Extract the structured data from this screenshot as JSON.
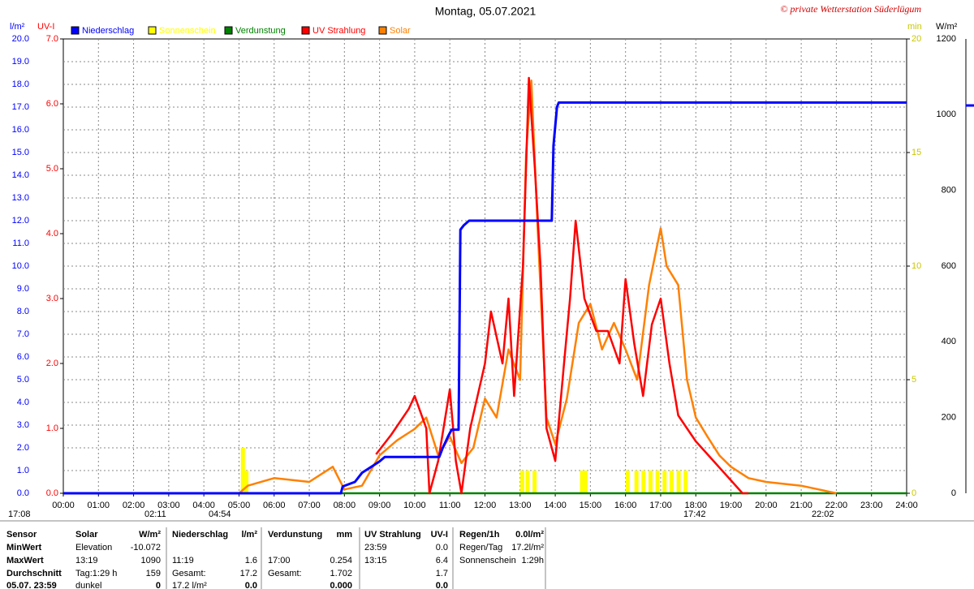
{
  "chart_data": {
    "type": "line",
    "title": "Montag, 05.07.2021",
    "copyright": "© private Wetterstation Süderlügum",
    "ylabel": "l/m²",
    "y2label": "UV-I",
    "y3label": "min",
    "y4label": "W/m²",
    "xlim": [
      0,
      24
    ],
    "xticks": [
      {
        "value": 0,
        "label": "00:00"
      },
      {
        "value": 1,
        "label": "01:00"
      },
      {
        "value": 2,
        "label": "02:00"
      },
      {
        "value": 3,
        "label": "03:00"
      },
      {
        "value": 4,
        "label": "04:00"
      },
      {
        "value": 5,
        "label": "05:00"
      },
      {
        "value": 6,
        "label": "06:00"
      },
      {
        "value": 7,
        "label": "07:00"
      },
      {
        "value": 8,
        "label": "08:00"
      },
      {
        "value": 9,
        "label": "09:00"
      },
      {
        "value": 10,
        "label": "10:00"
      },
      {
        "value": 11,
        "label": "11:00"
      },
      {
        "value": 12,
        "label": "12:00"
      },
      {
        "value": 13,
        "label": "13:00"
      },
      {
        "value": 14,
        "label": "14:00"
      },
      {
        "value": 15,
        "label": "15:00"
      },
      {
        "value": 16,
        "label": "16:00"
      },
      {
        "value": 17,
        "label": "17:00"
      },
      {
        "value": 18,
        "label": "18:00"
      },
      {
        "value": 19,
        "label": "19:00"
      },
      {
        "value": 20,
        "label": "20:00"
      },
      {
        "value": 21,
        "label": "21:00"
      },
      {
        "value": 22,
        "label": "22:00"
      },
      {
        "value": 23,
        "label": "23:00"
      },
      {
        "value": 24,
        "label": "24:00"
      }
    ],
    "ylim": [
      0,
      20
    ],
    "yticks": [
      {
        "value": 0,
        "label": "0.0"
      },
      {
        "value": 1,
        "label": "1.0"
      },
      {
        "value": 2,
        "label": "2.0"
      },
      {
        "value": 3,
        "label": "3.0"
      },
      {
        "value": 4,
        "label": "4.0"
      },
      {
        "value": 5,
        "label": "5.0"
      },
      {
        "value": 6,
        "label": "6.0"
      },
      {
        "value": 7,
        "label": "7.0"
      },
      {
        "value": 8,
        "label": "8.0"
      },
      {
        "value": 9,
        "label": "9.0"
      },
      {
        "value": 10,
        "label": "10.0"
      },
      {
        "value": 11,
        "label": "11.0"
      },
      {
        "value": 12,
        "label": "12.0"
      },
      {
        "value": 13,
        "label": "13.0"
      },
      {
        "value": 14,
        "label": "14.0"
      },
      {
        "value": 15,
        "label": "15.0"
      },
      {
        "value": 16,
        "label": "16.0"
      },
      {
        "value": 17,
        "label": "17.0"
      },
      {
        "value": 18,
        "label": "18.0"
      },
      {
        "value": 19,
        "label": "19.0"
      },
      {
        "value": 20,
        "label": "20.0"
      }
    ],
    "y2lim": [
      0,
      7
    ],
    "y2ticks": [
      {
        "value": 0,
        "label": "0.0"
      },
      {
        "value": 1,
        "label": "1.0"
      },
      {
        "value": 2,
        "label": "2.0"
      },
      {
        "value": 3,
        "label": "3.0"
      },
      {
        "value": 4,
        "label": "4.0"
      },
      {
        "value": 5,
        "label": "5.0"
      },
      {
        "value": 6,
        "label": "6.0"
      },
      {
        "value": 7,
        "label": "7.0"
      }
    ],
    "y3lim": [
      0,
      20
    ],
    "y3ticks": [
      0,
      5,
      10,
      15,
      20
    ],
    "y4lim": [
      0,
      1200
    ],
    "y4ticks": [
      0,
      200,
      400,
      600,
      800,
      1000,
      1200
    ],
    "grid": true,
    "series": [
      {
        "name": "Niederschlag",
        "color": "#0000ff",
        "axis": "y",
        "style": "line",
        "x": [
          0,
          7.9,
          7.95,
          8.3,
          8.5,
          8.8,
          9.0,
          9.15,
          10.7,
          10.8,
          10.95,
          11.05,
          11.25,
          11.3,
          11.4,
          11.55,
          13.9,
          13.95,
          14.05,
          14.1,
          24
        ],
        "values": [
          0,
          0,
          0.3,
          0.5,
          0.9,
          1.2,
          1.4,
          1.6,
          1.6,
          2.0,
          2.5,
          2.8,
          2.8,
          11.6,
          11.8,
          12.0,
          12.0,
          15.3,
          17.0,
          17.2,
          17.2
        ]
      },
      {
        "name": "Sonnenschein",
        "color": "#ffff00",
        "axis": "y3",
        "style": "bar",
        "x": [
          5.1,
          5.2,
          13.05,
          13.2,
          13.4,
          14.75,
          14.85,
          16.05,
          16.3,
          16.5,
          16.7,
          16.9,
          17.1,
          17.3,
          17.5,
          17.7
        ],
        "values": [
          2,
          1,
          1,
          1,
          1,
          1,
          1,
          1,
          1,
          1,
          1,
          1,
          1,
          1,
          1,
          1
        ]
      },
      {
        "name": "Verdunstung",
        "color": "#008000",
        "axis": "y",
        "style": "line",
        "x": [
          0,
          24
        ],
        "values": [
          0,
          0
        ]
      },
      {
        "name": "UV Strahlung",
        "color": "#ff0000",
        "axis": "y2",
        "style": "line",
        "x": [
          8.9,
          9.33,
          9.83,
          10.0,
          10.33,
          10.42,
          10.67,
          11.0,
          11.17,
          11.33,
          11.58,
          12.0,
          12.17,
          12.5,
          12.67,
          12.83,
          13.08,
          13.25,
          13.42,
          13.58,
          13.75,
          14.0,
          14.25,
          14.42,
          14.58,
          14.83,
          15.17,
          15.5,
          15.83,
          16.0,
          16.25,
          16.5,
          16.75,
          17.0,
          17.25,
          17.5,
          17.75,
          18.0,
          18.5,
          19.0,
          19.33,
          19.5
        ],
        "values": [
          0.6,
          0.9,
          1.3,
          1.5,
          1.0,
          0,
          0.5,
          1.6,
          0.5,
          0,
          1.0,
          2.0,
          2.8,
          2.0,
          3.0,
          1.5,
          3.5,
          6.4,
          5.0,
          3.5,
          1.0,
          0.5,
          2.0,
          3.0,
          4.2,
          3.0,
          2.5,
          2.5,
          2.0,
          3.3,
          2.3,
          1.5,
          2.6,
          3.0,
          2.0,
          1.2,
          1.0,
          0.8,
          0.5,
          0.2,
          0,
          0
        ]
      },
      {
        "name": "Solar",
        "color": "#ff8000",
        "axis": "y4",
        "style": "line",
        "x": [
          5.0,
          5.25,
          6.0,
          7.0,
          7.67,
          8.0,
          8.5,
          9.0,
          9.5,
          10.0,
          10.33,
          10.67,
          11.0,
          11.33,
          11.67,
          12.0,
          12.33,
          12.67,
          13.0,
          13.17,
          13.32,
          13.5,
          13.75,
          14.0,
          14.33,
          14.67,
          15.0,
          15.33,
          15.67,
          16.0,
          16.33,
          16.67,
          17.0,
          17.17,
          17.5,
          17.75,
          18.0,
          18.33,
          18.67,
          19.0,
          19.5,
          20.0,
          21.0,
          21.5,
          22.0
        ],
        "values": [
          0,
          20,
          40,
          30,
          70,
          10,
          20,
          100,
          140,
          170,
          200,
          100,
          150,
          80,
          120,
          250,
          200,
          380,
          300,
          900,
          1090,
          700,
          200,
          130,
          250,
          450,
          500,
          380,
          450,
          380,
          300,
          550,
          700,
          600,
          550,
          300,
          200,
          150,
          100,
          70,
          40,
          30,
          20,
          10,
          0
        ]
      }
    ],
    "annotations": [
      "17:08",
      "02:11",
      "04:54",
      "17:42",
      "22:02"
    ]
  },
  "table": {
    "rows": [
      [
        "Sensor",
        "Solar",
        "W/m²",
        "Niederschlag",
        "l/m²",
        "Verdunstung",
        "mm",
        "UV Strahlung",
        "UV-I",
        "Regen/1h",
        "0.0l/m²"
      ],
      [
        "MinWert",
        "Elevation",
        "-10.072",
        null,
        null,
        null,
        null,
        "23:59",
        "0.0",
        "Regen/Tag",
        "17.2l/m²"
      ],
      [
        "MaxWert",
        "13:19",
        "1090",
        "11:19",
        "1.6",
        "17:00",
        "0.254",
        "13:15",
        "6.4",
        "Sonnenschein",
        "1:29h"
      ],
      [
        "Durchschnitt",
        "Tag:1:29 h",
        "159",
        "Gesamt:",
        "17.2",
        "Gesamt:",
        "1.702",
        null,
        "1.7",
        null,
        null
      ],
      [
        "05.07. 23:59",
        "dunkel",
        "0",
        "17.2 l/m²",
        "0.0",
        null,
        "0.000",
        null,
        "0.0",
        null,
        null
      ]
    ]
  }
}
